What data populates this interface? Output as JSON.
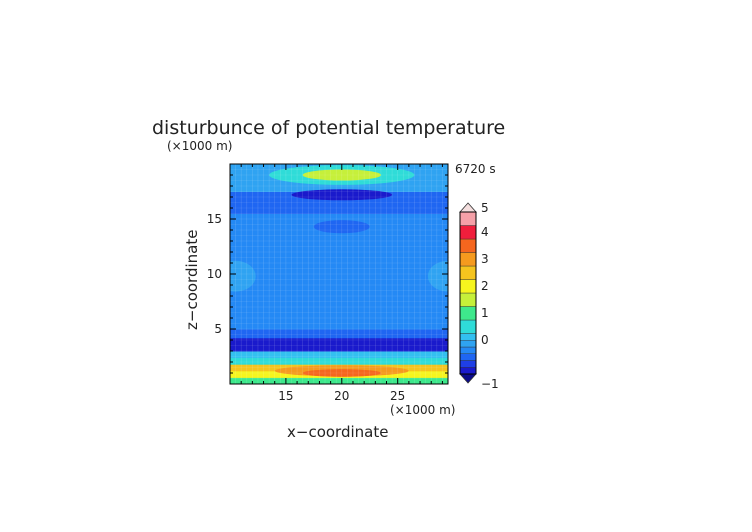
{
  "chart_data": {
    "type": "heatmap",
    "title": "disturbunce of potential temperature",
    "time_label": "6720 s",
    "xlabel": "x−coordinate",
    "ylabel": "z−coordinate",
    "x_unit": "(×1000 m)",
    "y_unit": "(×1000 m)",
    "xlim": [
      10,
      29.5
    ],
    "ylim": [
      0,
      20
    ],
    "x_ticks": [
      15,
      20,
      25
    ],
    "y_ticks": [
      5,
      10,
      15
    ],
    "colorbar": {
      "min": -1,
      "max": 5,
      "tick_values": [
        -1,
        0,
        1,
        2,
        3,
        4,
        5
      ],
      "levels": [
        {
          "from": -1.0,
          "to": -0.75,
          "color": "#1a1acc"
        },
        {
          "from": -0.75,
          "to": -0.5,
          "color": "#1f3fe6"
        },
        {
          "from": -0.5,
          "to": -0.25,
          "color": "#1f66f2"
        },
        {
          "from": -0.25,
          "to": 0.0,
          "color": "#2489f5"
        },
        {
          "from": 0.0,
          "to": 0.25,
          "color": "#2fa3f2"
        },
        {
          "from": 0.25,
          "to": 0.5,
          "color": "#33c0f0"
        },
        {
          "from": 0.5,
          "to": 1.0,
          "color": "#2fdcd8"
        },
        {
          "from": 1.0,
          "to": 1.5,
          "color": "#3ee88c"
        },
        {
          "from": 1.5,
          "to": 2.0,
          "color": "#c6f03a"
        },
        {
          "from": 2.0,
          "to": 2.5,
          "color": "#f6f51e"
        },
        {
          "from": 2.5,
          "to": 3.0,
          "color": "#f5c41e"
        },
        {
          "from": 3.0,
          "to": 3.5,
          "color": "#f59a1e"
        },
        {
          "from": 3.5,
          "to": 4.0,
          "color": "#f5661e"
        },
        {
          "from": 4.0,
          "to": 4.5,
          "color": "#f01e3c"
        },
        {
          "from": 4.5,
          "to": 5.0,
          "color": "#f5a0a8"
        }
      ]
    },
    "field_bands": [
      {
        "z_from": 0.0,
        "z_to": 0.6,
        "value": 1.2
      },
      {
        "z_from": 0.6,
        "z_to": 1.2,
        "value": 2.2
      },
      {
        "z_from": 1.2,
        "z_to": 1.8,
        "value": 2.6
      },
      {
        "z_from": 1.8,
        "z_to": 2.4,
        "value": 0.7
      },
      {
        "z_from": 2.4,
        "z_to": 3.0,
        "value": 0.35
      },
      {
        "z_from": 3.0,
        "z_to": 4.2,
        "value": -0.85
      },
      {
        "z_from": 4.2,
        "z_to": 5.0,
        "value": -0.4
      },
      {
        "z_from": 5.0,
        "z_to": 7.5,
        "value": -0.1
      },
      {
        "z_from": 7.5,
        "z_to": 12.5,
        "value": -0.2
      },
      {
        "z_from": 12.5,
        "z_to": 15.5,
        "value": -0.1
      },
      {
        "z_from": 15.5,
        "z_to": 17.5,
        "value": -0.3
      },
      {
        "z_from": 17.5,
        "z_to": 20.0,
        "value": 0.1
      }
    ],
    "features": [
      {
        "shape": "ellipse",
        "cx": 20,
        "cz": 19.0,
        "rx": 6.5,
        "rz": 0.9,
        "value": 0.7
      },
      {
        "shape": "ellipse",
        "cx": 20,
        "cz": 19.0,
        "rx": 3.5,
        "rz": 0.5,
        "value": 1.6
      },
      {
        "shape": "ellipse",
        "cx": 20,
        "cz": 17.2,
        "rx": 4.5,
        "rz": 0.5,
        "value": -0.85
      },
      {
        "shape": "ellipse",
        "cx": 20,
        "cz": 14.3,
        "rx": 2.5,
        "rz": 0.6,
        "value": -0.35
      },
      {
        "shape": "ellipse",
        "cx": 20,
        "cz": 11.0,
        "rx": 4.5,
        "rz": 1.5,
        "value": -0.1
      },
      {
        "shape": "ellipse",
        "cx": 10.5,
        "cz": 9.8,
        "rx": 1.8,
        "rz": 1.4,
        "value": 0.1
      },
      {
        "shape": "ellipse",
        "cx": 29.5,
        "cz": 9.8,
        "rx": 1.8,
        "rz": 1.4,
        "value": 0.1
      },
      {
        "shape": "ellipse",
        "cx": 20,
        "cz": 1.2,
        "rx": 6.0,
        "rz": 0.5,
        "value": 3.2
      },
      {
        "shape": "ellipse",
        "cx": 20,
        "cz": 1.0,
        "rx": 3.5,
        "rz": 0.35,
        "value": 3.7
      }
    ]
  }
}
